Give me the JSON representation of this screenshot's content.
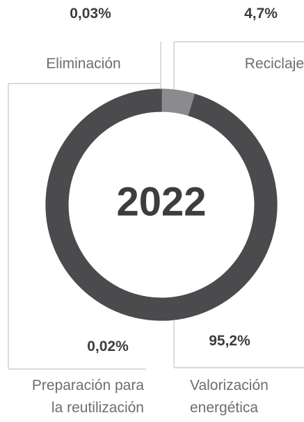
{
  "chart_data": {
    "type": "pie",
    "donut": true,
    "center_label": "2022",
    "categories": [
      "Eliminación",
      "Reciclaje",
      "Valorización energética",
      "Preparación para la reutilización"
    ],
    "values": [
      0.03,
      4.7,
      95.2,
      0.02
    ],
    "value_labels": [
      "0,03%",
      "4,7%",
      "95,2%",
      "0,02%"
    ],
    "colors": [
      "#e3ad3c",
      "#8b8b8e",
      "#4b4b4d",
      "#4b4b4d"
    ]
  }
}
